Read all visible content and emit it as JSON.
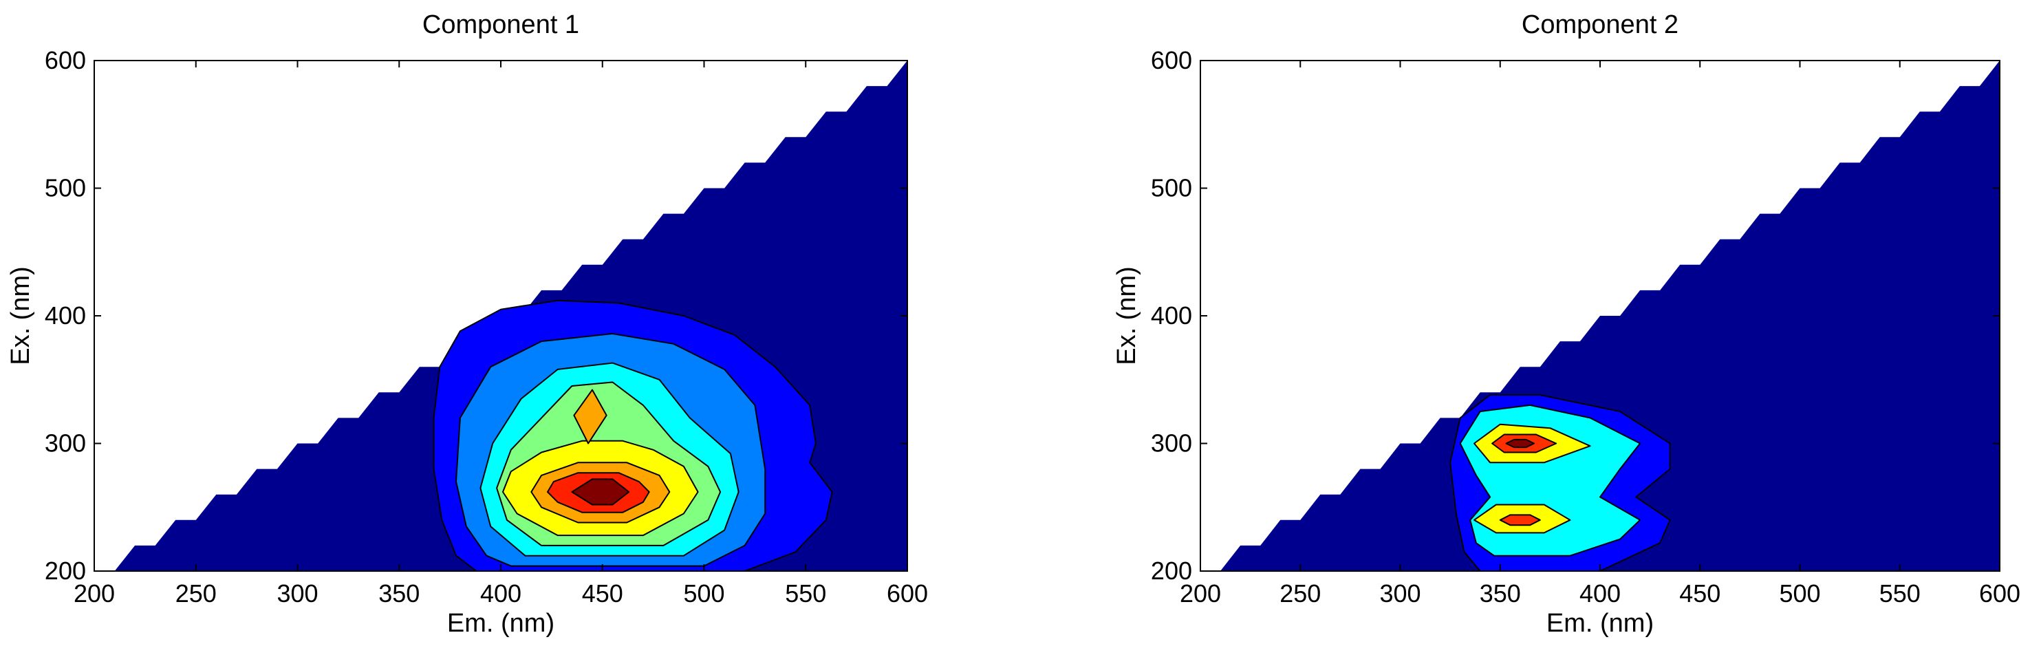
{
  "chart_data": [
    {
      "type": "contour",
      "title": "Component 1",
      "xlabel": "Em. (nm)",
      "ylabel": "Ex. (nm)",
      "xlim": [
        200,
        600
      ],
      "ylim": [
        200,
        600
      ],
      "xticks": [
        "200",
        "250",
        "300",
        "350",
        "400",
        "450",
        "500",
        "550",
        "600"
      ],
      "yticks": [
        "200",
        "300",
        "400",
        "500",
        "600"
      ],
      "background_color": "#00008F",
      "masked_region": "Ex > Em (white, upper-left triangle)",
      "peaks": [
        {
          "em": 445,
          "ex": 260,
          "level": "max"
        },
        {
          "em": 445,
          "ex": 320,
          "level": "secondary"
        }
      ],
      "levels": [
        {
          "color": "#0000FF",
          "points": [
            [
              388,
              200
            ],
            [
              520,
              200
            ],
            [
              545,
              215
            ],
            [
              560,
              240
            ],
            [
              563,
              262
            ],
            [
              552,
              285
            ],
            [
              555,
              300
            ],
            [
              552,
              330
            ],
            [
              535,
              360
            ],
            [
              515,
              385
            ],
            [
              490,
              400
            ],
            [
              458,
              410
            ],
            [
              428,
              412
            ],
            [
              400,
              405
            ],
            [
              380,
              388
            ],
            [
              370,
              360
            ],
            [
              367,
              320
            ],
            [
              367,
              280
            ],
            [
              371,
              240
            ],
            [
              378,
              212
            ]
          ]
        },
        {
          "color": "#0080FF",
          "points": [
            [
              405,
              204
            ],
            [
              500,
              204
            ],
            [
              520,
              220
            ],
            [
              530,
              245
            ],
            [
              530,
              280
            ],
            [
              525,
              330
            ],
            [
              510,
              358
            ],
            [
              485,
              378
            ],
            [
              455,
              386
            ],
            [
              420,
              380
            ],
            [
              395,
              360
            ],
            [
              380,
              320
            ],
            [
              378,
              270
            ],
            [
              383,
              235
            ],
            [
              393,
              212
            ]
          ]
        },
        {
          "color": "#00FFFF",
          "points": [
            [
              412,
              212
            ],
            [
              490,
              212
            ],
            [
              510,
              232
            ],
            [
              517,
              262
            ],
            [
              513,
              292
            ],
            [
              493,
              320
            ],
            [
              478,
              350
            ],
            [
              455,
              363
            ],
            [
              428,
              358
            ],
            [
              410,
              335
            ],
            [
              396,
              300
            ],
            [
              390,
              265
            ],
            [
              395,
              235
            ]
          ]
        },
        {
          "color": "#80FF80",
          "points": [
            [
              420,
              220
            ],
            [
              480,
              220
            ],
            [
              502,
              240
            ],
            [
              508,
              262
            ],
            [
              502,
              282
            ],
            [
              485,
              302
            ],
            [
              470,
              330
            ],
            [
              455,
              348
            ],
            [
              435,
              345
            ],
            [
              420,
              320
            ],
            [
              405,
              295
            ],
            [
              398,
              265
            ],
            [
              403,
              240
            ]
          ]
        },
        {
          "color": "#FFFF00",
          "points": [
            [
              428,
              228
            ],
            [
              470,
              228
            ],
            [
              490,
              245
            ],
            [
              497,
              262
            ],
            [
              490,
              282
            ],
            [
              475,
              295
            ],
            [
              460,
              302
            ],
            [
              440,
              302
            ],
            [
              420,
              293
            ],
            [
              405,
              278
            ],
            [
              401,
              262
            ],
            [
              408,
              245
            ]
          ]
        },
        {
          "color": "#FFA500",
          "points": [
            [
              443,
              300
            ],
            [
              452,
              322
            ],
            [
              445,
              342
            ],
            [
              436,
              322
            ]
          ]
        },
        {
          "color": "#FFA500",
          "points": [
            [
              438,
              238
            ],
            [
              462,
              238
            ],
            [
              478,
              250
            ],
            [
              483,
              262
            ],
            [
              478,
              275
            ],
            [
              462,
              285
            ],
            [
              438,
              285
            ],
            [
              420,
              275
            ],
            [
              415,
              262
            ],
            [
              420,
              250
            ]
          ]
        },
        {
          "color": "#FF2000",
          "points": [
            [
              440,
              246
            ],
            [
              460,
              246
            ],
            [
              470,
              254
            ],
            [
              473,
              262
            ],
            [
              468,
              270
            ],
            [
              458,
              277
            ],
            [
              438,
              277
            ],
            [
              426,
              270
            ],
            [
              423,
              262
            ],
            [
              428,
              254
            ]
          ]
        },
        {
          "color": "#800000",
          "points": [
            [
              445,
              252
            ],
            [
              455,
              252
            ],
            [
              463,
              262
            ],
            [
              455,
              272
            ],
            [
              445,
              272
            ],
            [
              435,
              262
            ]
          ]
        }
      ]
    },
    {
      "type": "contour",
      "title": "Component 2",
      "xlabel": "Em. (nm)",
      "ylabel": "Ex. (nm)",
      "xlim": [
        200,
        600
      ],
      "ylim": [
        200,
        600
      ],
      "xticks": [
        "200",
        "250",
        "300",
        "350",
        "400",
        "450",
        "500",
        "550",
        "600"
      ],
      "yticks": [
        "200",
        "300",
        "400",
        "500",
        "600"
      ],
      "background_color": "#00008F",
      "masked_region": "Ex > Em (white, upper-left triangle)",
      "peaks": [
        {
          "em": 360,
          "ex": 300,
          "level": "max"
        },
        {
          "em": 360,
          "ex": 240,
          "level": "secondary"
        }
      ],
      "levels": [
        {
          "color": "#0000FF",
          "points": [
            [
              340,
              200
            ],
            [
              400,
              200
            ],
            [
              430,
              222
            ],
            [
              435,
              240
            ],
            [
              418,
              258
            ],
            [
              435,
              280
            ],
            [
              435,
              300
            ],
            [
              410,
              325
            ],
            [
              370,
              338
            ],
            [
              345,
              338
            ],
            [
              330,
              320
            ],
            [
              325,
              285
            ],
            [
              328,
              245
            ],
            [
              332,
              215
            ]
          ]
        },
        {
          "color": "#00FFFF",
          "points": [
            [
              347,
              212
            ],
            [
              385,
              212
            ],
            [
              410,
              225
            ],
            [
              420,
              240
            ],
            [
              400,
              258
            ],
            [
              410,
              280
            ],
            [
              420,
              300
            ],
            [
              395,
              320
            ],
            [
              365,
              330
            ],
            [
              340,
              325
            ],
            [
              330,
              300
            ],
            [
              338,
              275
            ],
            [
              345,
              258
            ],
            [
              335,
              240
            ],
            [
              338,
              222
            ]
          ]
        },
        {
          "color": "#FFFF00",
          "points": [
            [
              348,
              230
            ],
            [
              372,
              230
            ],
            [
              385,
              240
            ],
            [
              372,
              252
            ],
            [
              348,
              252
            ],
            [
              337,
              240
            ]
          ]
        },
        {
          "color": "#FFFF00",
          "points": [
            [
              345,
              285
            ],
            [
              372,
              285
            ],
            [
              395,
              298
            ],
            [
              375,
              312
            ],
            [
              350,
              315
            ],
            [
              337,
              300
            ]
          ]
        },
        {
          "color": "#FF3000",
          "points": [
            [
              355,
              236
            ],
            [
              365,
              236
            ],
            [
              370,
              240
            ],
            [
              365,
              244
            ],
            [
              355,
              244
            ],
            [
              350,
              240
            ]
          ]
        },
        {
          "color": "#FF3000",
          "points": [
            [
              352,
              293
            ],
            [
              368,
              293
            ],
            [
              378,
              300
            ],
            [
              368,
              307
            ],
            [
              352,
              307
            ],
            [
              346,
              300
            ]
          ]
        },
        {
          "color": "#800000",
          "points": [
            [
              357,
              297
            ],
            [
              363,
              297
            ],
            [
              367,
              300
            ],
            [
              363,
              303
            ],
            [
              357,
              303
            ],
            [
              353,
              300
            ]
          ]
        }
      ]
    }
  ]
}
